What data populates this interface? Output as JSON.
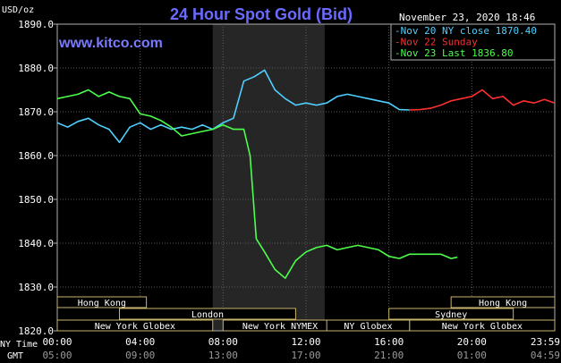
{
  "title": "24 Hour Spot Gold (Bid)",
  "source": "www.kitco.com",
  "timestamp": "November 23, 2020 18:46",
  "unit_label": "USD/oz",
  "row_labels": {
    "ny_time": "NY Time",
    "gmt": "GMT"
  },
  "chart_data": {
    "type": "line",
    "title": "24 Hour Spot Gold (Bid)",
    "ylabel": "USD/oz",
    "ylim": [
      1820,
      1890
    ],
    "xlim": [
      0,
      24
    ],
    "y_ticks": [
      "1890.0",
      "1880.0",
      "1870.0",
      "1860.0",
      "1850.0",
      "1840.0",
      "1830.0",
      "1820.0"
    ],
    "x_ticks_ny": [
      "00:00",
      "04:00",
      "08:00",
      "12:00",
      "16:00",
      "20:00",
      "23:59"
    ],
    "x_ticks_gmt": [
      "05:00",
      "09:00",
      "13:00",
      "17:00",
      "21:00",
      "01:00",
      "04:59"
    ],
    "grid": true,
    "legend": "top-right",
    "shaded_region": [
      7.5,
      12.9
    ],
    "series": [
      {
        "name": "Nov 20 NY close 1870.40",
        "color": "#4fd0ff",
        "x": [
          0,
          0.5,
          1.0,
          1.5,
          2.0,
          2.5,
          3.0,
          3.5,
          4.0,
          4.5,
          5.0,
          5.5,
          6.0,
          6.5,
          7.0,
          7.5,
          8.0,
          8.5,
          9.0,
          9.5,
          10.0,
          10.5,
          11.0,
          11.5,
          12.0,
          12.5,
          13.0,
          13.5,
          14.0,
          14.5,
          15.0,
          15.5,
          16.0,
          16.5,
          17.0
        ],
        "y": [
          1867.5,
          1866.5,
          1867.8,
          1868.5,
          1867.0,
          1866.0,
          1863.0,
          1866.5,
          1867.5,
          1866.0,
          1867.0,
          1866.0,
          1866.5,
          1866.0,
          1867.0,
          1866.0,
          1867.5,
          1868.5,
          1877.0,
          1878.0,
          1879.5,
          1875.0,
          1873.0,
          1871.5,
          1872.0,
          1871.5,
          1872.0,
          1873.5,
          1874.0,
          1873.5,
          1873.0,
          1872.5,
          1872.0,
          1870.5,
          1870.4
        ]
      },
      {
        "name": "Nov 22 Sunday",
        "color": "#ff3030",
        "x": [
          17.0,
          17.5,
          18.0,
          18.5,
          19.0,
          19.5,
          20.0,
          20.5,
          21.0,
          21.5,
          22.0,
          22.5,
          23.0,
          23.5,
          24.0
        ],
        "y": [
          1870.4,
          1870.5,
          1870.8,
          1871.5,
          1872.5,
          1873.0,
          1873.5,
          1875.0,
          1873.0,
          1873.5,
          1871.5,
          1872.5,
          1872.0,
          1872.8,
          1872.0
        ]
      },
      {
        "name": "Nov 23 Last 1836.80",
        "color": "#4cff4c",
        "x": [
          0,
          0.5,
          1.0,
          1.5,
          2.0,
          2.5,
          3.0,
          3.5,
          4.0,
          4.5,
          5.0,
          5.5,
          6.0,
          6.5,
          7.0,
          7.5,
          8.0,
          8.5,
          9.0,
          9.3,
          9.6,
          10.0,
          10.5,
          11.0,
          11.5,
          12.0,
          12.5,
          13.0,
          13.5,
          14.0,
          14.5,
          15.0,
          15.5,
          16.0,
          16.5,
          17.0,
          17.5,
          18.0,
          18.5,
          19.0,
          19.3
        ],
        "y": [
          1873.0,
          1873.5,
          1874.0,
          1875.0,
          1873.5,
          1874.5,
          1873.5,
          1873.0,
          1869.5,
          1869.0,
          1868.0,
          1866.5,
          1864.5,
          1865.0,
          1865.5,
          1866.0,
          1867.0,
          1866.0,
          1866.0,
          1860.0,
          1841.0,
          1838.0,
          1834.0,
          1832.0,
          1836.0,
          1838.0,
          1839.0,
          1839.5,
          1838.5,
          1839.0,
          1839.5,
          1839.0,
          1838.5,
          1837.0,
          1836.5,
          1837.5,
          1837.5,
          1837.5,
          1837.5,
          1836.5,
          1836.8
        ]
      }
    ],
    "market_sessions": [
      {
        "label": "Hong Kong",
        "row": 1,
        "start": 0,
        "end": 4.3
      },
      {
        "label": "London",
        "row": 2,
        "start": 3.0,
        "end": 11.5
      },
      {
        "label": "New York Globex",
        "row": 3,
        "start": 0,
        "end": 7.5
      },
      {
        "label": "New York NYMEX",
        "row": 3,
        "start": 8.0,
        "end": 13.5
      },
      {
        "label": "NY Globex",
        "row": 3,
        "start": 13.0,
        "end": 17.0
      },
      {
        "label": "Hong Kong",
        "row": 1,
        "start": 19.0,
        "end": 24.0
      },
      {
        "label": "Sydney",
        "row": 2,
        "start": 16.0,
        "end": 22.0
      },
      {
        "label": "New York Globex",
        "row": 3,
        "start": 17.0,
        "end": 24.0
      }
    ]
  }
}
